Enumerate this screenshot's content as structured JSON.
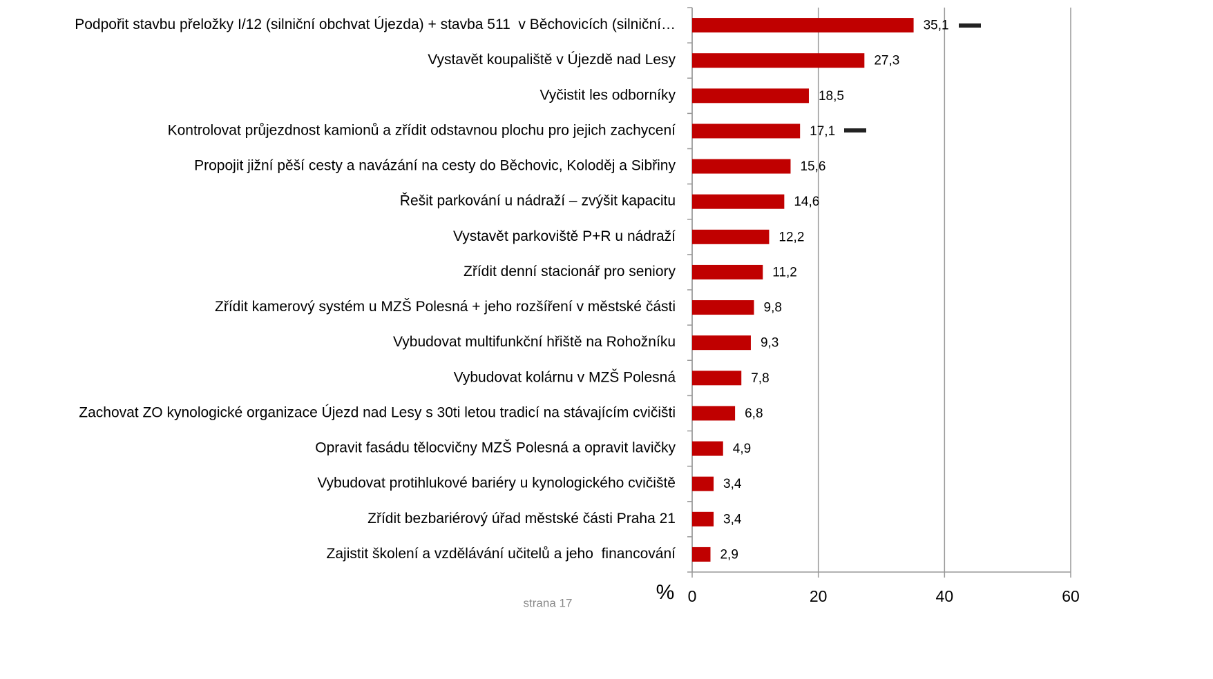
{
  "chart_data": {
    "type": "hbar",
    "categories": [
      "Podpořit stavbu přeložky I/12 (silniční obchvat Újezda) + stavba 511  v Běchovicích (silniční…",
      "Vystavět koupaliště v Újezdě nad Lesy",
      "Vyčistit les odborníky",
      "Kontrolovat průjezdnost kamionů a zřídit odstavnou plochu pro jejich zachycení",
      "Propojit jižní pěší cesty a navázání na cesty do Běchovic, Koloděj a Sibřiny",
      "Řešit parkování u nádraží – zvýšit kapacitu",
      "Vystavět parkoviště P+R u nádraží",
      "Zřídit denní stacionář pro seniory",
      "Zřídit kamerový systém u MZŠ Polesná + jeho rozšíření v městské části",
      "Vybudovat multifunkční hřiště na Rohožníku",
      "Vybudovat kolárnu v MZŠ Polesná",
      "Zachovat ZO kynologické organizace Újezd nad Lesy s 30ti letou tradicí na stávajícím cvičišti",
      "Opravit fasádu tělocvičny MZŠ Polesná a opravit lavičky",
      "Vybudovat protihlukové bariéry u kynologického cvičiště",
      "Zřídit bezbariérový úřad městské části Praha 21",
      "Zajistit školení a vzdělávání učitelů a jeho  financování"
    ],
    "values": [
      35.1,
      27.3,
      18.5,
      17.1,
      15.6,
      14.6,
      12.2,
      11.2,
      9.8,
      9.3,
      7.8,
      6.8,
      4.9,
      3.4,
      3.4,
      2.9
    ],
    "value_labels": [
      "35,1",
      "27,3",
      "18,5",
      "17,1",
      "15,6",
      "14,6",
      "12,2",
      "11,2",
      "9,8",
      "9,3",
      "7,8",
      "6,8",
      "4,9",
      "3,4",
      "3,4",
      "2,9"
    ],
    "color": "#c00000",
    "xlim": [
      0,
      60
    ],
    "xticks": [
      0,
      20,
      40,
      60
    ],
    "grid": true,
    "xlabel": "%",
    "footer": "strana 17"
  }
}
